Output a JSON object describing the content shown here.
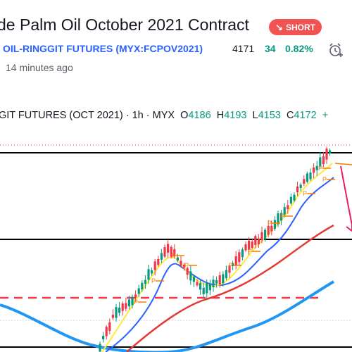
{
  "header": {
    "title": "de Palm Oil October 2021 Contract",
    "badge": "SHORT",
    "symbol_name": "OIL-RINGGIT FUTURES",
    "symbol_code": "(MYX:FCPOV2021)",
    "last_price": "4171",
    "change": "34",
    "change_percent": "0.82%",
    "updated": "14 minutes ago"
  },
  "legend": {
    "instrument": "GIT FUTURES (OCT 2021) · 1h · MYX",
    "o_label": "O",
    "o_value": "4186",
    "h_label": "H",
    "h_value": "4193",
    "l_label": "L",
    "l_value": "4153",
    "c_label": "C",
    "c_value": "4172",
    "tail": "+"
  },
  "icons": {
    "badge_icon": "arrow-down-right-icon",
    "alarm_icon": "alarm-clock-plus-icon"
  },
  "colors": {
    "up": "#089981",
    "down": "#f23645",
    "ema_fast": "#ffeb3b",
    "ema_mid": "#2962ff",
    "ema_slow": "#e53935",
    "ema_long": "#2196f3",
    "badge": "#f05350",
    "link": "#2962ff"
  },
  "chart_data": {
    "type": "candlestick",
    "timeframe": "1h",
    "ohlc_last": {
      "open": 4186,
      "high": 4193,
      "low": 4153,
      "close": 4172
    },
    "trend_series": [
      {
        "color": "#ffeb3b"
      },
      {
        "color": "#2962ff"
      },
      {
        "color": "#e53935"
      },
      {
        "color": "#2196f3"
      }
    ]
  }
}
